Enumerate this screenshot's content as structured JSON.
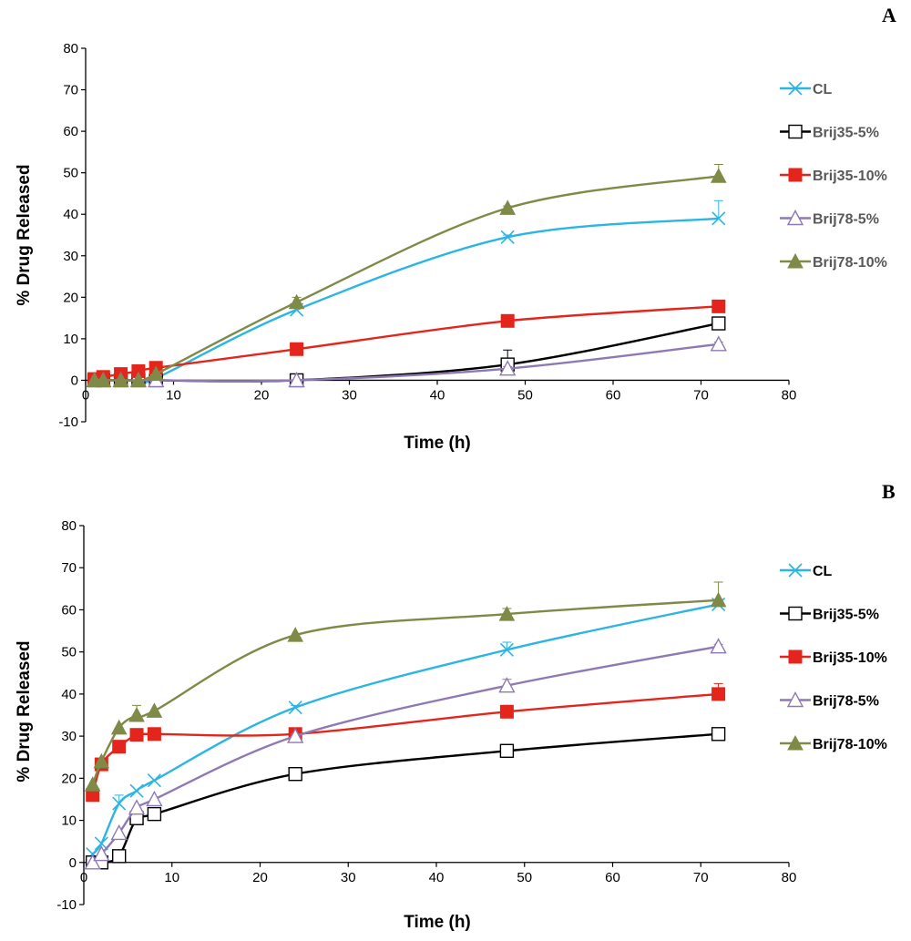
{
  "colors": {
    "CL": "#2BB5E2",
    "Brij35-5%": "#000000",
    "Brij35-10%": "#E3251B",
    "Brij78-5%": "#8F79B5",
    "Brij78-10%": "#7E8A46"
  },
  "chart_data": [
    {
      "type": "line",
      "panel_label": "A",
      "xlabel": "Time (h)",
      "ylabel": "% Drug Released",
      "xlim": [
        0,
        80
      ],
      "ylim": [
        -10,
        80
      ],
      "xticks": [
        0,
        10,
        20,
        30,
        40,
        50,
        60,
        70,
        80
      ],
      "yticks": [
        -10,
        0,
        10,
        20,
        30,
        40,
        50,
        60,
        70,
        80
      ],
      "grid": false,
      "legend": "right",
      "legend_text_color": "#595959",
      "series": [
        {
          "name": "CL",
          "marker": "x",
          "x": [
            1,
            2,
            4,
            6,
            8,
            24,
            48,
            72
          ],
          "y": [
            0,
            0,
            0,
            0,
            0.5,
            17,
            34.5,
            39
          ],
          "err": [
            0,
            0,
            0,
            0,
            0,
            0.5,
            0.5,
            4.3
          ]
        },
        {
          "name": "Brij35-5%",
          "marker": "square-open",
          "x": [
            1,
            2,
            4,
            6,
            8,
            24,
            48,
            72
          ],
          "y": [
            0,
            0,
            0,
            0,
            0,
            0,
            3.8,
            13.7
          ],
          "err": [
            0,
            0,
            0,
            0,
            0,
            0,
            3.5,
            1.5
          ]
        },
        {
          "name": "Brij35-10%",
          "marker": "square-filled",
          "x": [
            1,
            2,
            4,
            6,
            8,
            24,
            48,
            72
          ],
          "y": [
            0.3,
            0.8,
            1.5,
            2.2,
            3,
            7.5,
            14.3,
            17.8
          ],
          "err": [
            0,
            0,
            0,
            0,
            0,
            0.5,
            0.5,
            0.5
          ]
        },
        {
          "name": "Brij78-5%",
          "marker": "triangle-open",
          "x": [
            1,
            2,
            4,
            6,
            8,
            24,
            48,
            72
          ],
          "y": [
            0,
            0,
            0,
            0,
            0,
            0,
            2.8,
            8.7
          ],
          "err": [
            0,
            0,
            0,
            0,
            0,
            0,
            0.5,
            0.5
          ]
        },
        {
          "name": "Brij78-10%",
          "marker": "triangle-filled",
          "x": [
            1,
            2,
            4,
            6,
            8,
            24,
            48,
            72
          ],
          "y": [
            0,
            0,
            0,
            0,
            1.5,
            18.8,
            41.5,
            49.2
          ],
          "err": [
            0,
            0,
            0,
            0,
            0,
            1.2,
            0.5,
            2.8
          ]
        }
      ]
    },
    {
      "type": "line",
      "panel_label": "B",
      "xlabel": "Time (h)",
      "ylabel": "% Drug Released",
      "xlim": [
        0,
        80
      ],
      "ylim": [
        -10,
        80
      ],
      "xticks": [
        0,
        10,
        20,
        30,
        40,
        50,
        60,
        70,
        80
      ],
      "yticks": [
        -10,
        0,
        10,
        20,
        30,
        40,
        50,
        60,
        70,
        80
      ],
      "grid": false,
      "legend": "right",
      "legend_text_color": "#000000",
      "series": [
        {
          "name": "CL",
          "marker": "x",
          "x": [
            1,
            2,
            4,
            6,
            8,
            24,
            48,
            72
          ],
          "y": [
            2,
            4.5,
            14,
            17,
            19.5,
            36.8,
            50.5,
            61.3
          ],
          "err": [
            0,
            0,
            2,
            0,
            0,
            0.5,
            1.8,
            1.2
          ]
        },
        {
          "name": "Brij35-5%",
          "marker": "square-open",
          "x": [
            1,
            2,
            4,
            6,
            8,
            24,
            48,
            72
          ],
          "y": [
            0,
            0,
            1.5,
            10.5,
            11.5,
            21,
            26.5,
            30.5
          ],
          "err": [
            0,
            0,
            0,
            0,
            0,
            0,
            1.3,
            0.5
          ]
        },
        {
          "name": "Brij35-10%",
          "marker": "square-filled",
          "x": [
            1,
            2,
            4,
            6,
            8,
            24,
            48,
            72
          ],
          "y": [
            16,
            23.3,
            27.5,
            30.3,
            30.5,
            30.5,
            35.8,
            40
          ],
          "err": [
            0,
            0,
            0,
            0,
            0,
            0.5,
            1.5,
            2.5
          ]
        },
        {
          "name": "Brij78-5%",
          "marker": "triangle-open",
          "x": [
            1,
            2,
            4,
            6,
            8,
            24,
            48,
            72
          ],
          "y": [
            0,
            2,
            7,
            13,
            15,
            30,
            42,
            51.3
          ],
          "err": [
            0,
            0,
            0,
            0,
            0,
            0.5,
            1.5,
            0.5
          ]
        },
        {
          "name": "Brij78-10%",
          "marker": "triangle-filled",
          "x": [
            1,
            2,
            4,
            6,
            8,
            24,
            48,
            72
          ],
          "y": [
            18.5,
            24,
            32,
            35,
            36,
            54,
            59,
            62.3
          ],
          "err": [
            0,
            0,
            0,
            2.3,
            0,
            0,
            1.3,
            4.3
          ]
        }
      ]
    }
  ]
}
